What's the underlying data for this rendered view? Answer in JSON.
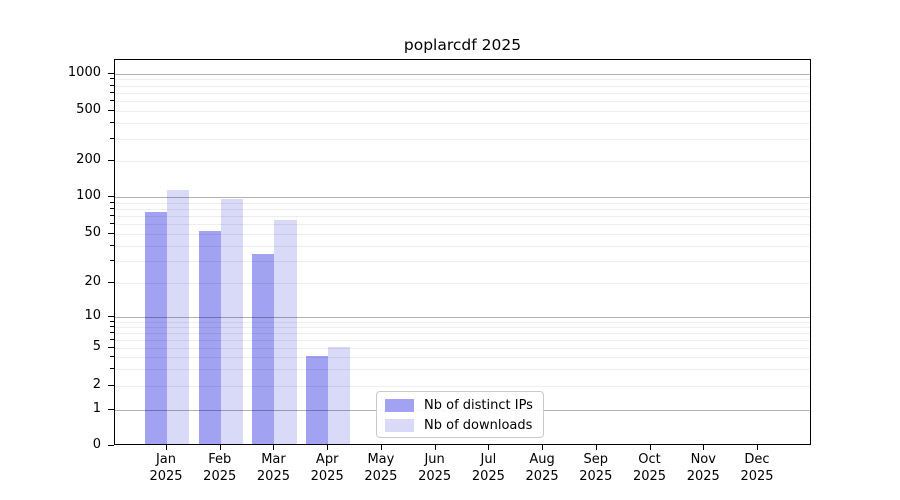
{
  "chart_data": {
    "type": "bar",
    "title": "poplarcdf 2025",
    "xlabel": "",
    "ylabel": "",
    "x_tick_months": [
      "Jan",
      "Feb",
      "Mar",
      "Apr",
      "May",
      "Jun",
      "Jul",
      "Aug",
      "Sep",
      "Oct",
      "Nov",
      "Dec"
    ],
    "x_tick_year": "2025",
    "y_ticks": [
      0,
      1,
      2,
      5,
      10,
      20,
      50,
      100,
      200,
      500,
      1000
    ],
    "yscale": "log-like with 0 baseline",
    "ylim": [
      0,
      1380
    ],
    "grid": "on (minor light, major at powers of 10)",
    "categories": [
      "Jan 2025",
      "Feb 2025",
      "Mar 2025",
      "Apr 2025",
      "May 2025",
      "Jun 2025",
      "Jul 2025",
      "Aug 2025",
      "Sep 2025",
      "Oct 2025",
      "Nov 2025",
      "Dec 2025"
    ],
    "series": [
      {
        "name": "Nb of distinct IPs",
        "color": "#a2a2f2",
        "values": [
          74,
          52,
          34,
          4,
          0,
          0,
          0,
          0,
          0,
          0,
          0,
          0
        ]
      },
      {
        "name": "Nb of downloads",
        "color": "#d9d9f8",
        "values": [
          112,
          95,
          64,
          5,
          0,
          0,
          0,
          0,
          0,
          0,
          0,
          0
        ]
      }
    ],
    "legend": {
      "position": "inside lower-center",
      "entries": [
        "Nb of distinct IPs",
        "Nb of downloads"
      ]
    }
  }
}
